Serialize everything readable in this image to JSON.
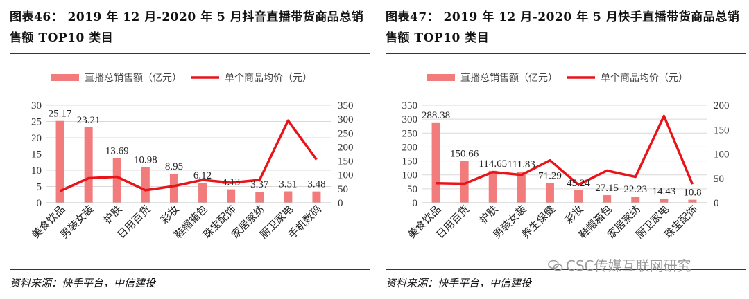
{
  "left": {
    "title_line1": "图表46： 2019 年 12 月-2020 年 5 月抖音直播带货商品总销",
    "title_line2": "售额 TOP10 类目",
    "source": "资料来源：快手平台，中信建投"
  },
  "right": {
    "title_line1": "图表47： 2019 年 12 月-2020 年 5 月快手直播带货商品总销",
    "title_line2": "售额 TOP10 类目",
    "source": "资料来源：快手平台，中信建投"
  },
  "watermark": "CSC传媒互联网研究",
  "colors": {
    "bar": "#f27c7c",
    "line": "#e8141a",
    "grid": "#d9d9d9",
    "rule": "#1f3a5f"
  },
  "chart_data": [
    {
      "type": "bar",
      "categories": [
        "美食饮品",
        "男装女装",
        "护肤",
        "日用百货",
        "彩妆",
        "鞋帽箱包",
        "珠宝配饰",
        "家居家纺",
        "厨卫家电",
        "手机数码"
      ],
      "series": [
        {
          "name": "直播总销售额（亿元）",
          "type": "bar",
          "axis": "left",
          "values": [
            25.17,
            23.21,
            13.69,
            10.98,
            8.95,
            6.12,
            4.13,
            3.37,
            3.51,
            3.48
          ],
          "labels": [
            "25.17",
            "23.21",
            "13.69",
            "10.98",
            "8.95",
            "6.12",
            "4.13",
            "3.37",
            "3.51",
            "3.48"
          ]
        },
        {
          "name": "单个商品均价（元）",
          "type": "line",
          "axis": "right",
          "values": [
            42,
            88,
            93,
            45,
            60,
            82,
            72,
            82,
            295,
            155
          ]
        }
      ],
      "ylim_left": [
        0,
        30
      ],
      "yticks_left": [
        0,
        5,
        10,
        15,
        20,
        25,
        30
      ],
      "ylim_right": [
        0,
        350
      ],
      "yticks_right": [
        0,
        50,
        100,
        150,
        200,
        250,
        300,
        350
      ],
      "legend": "top-center",
      "grid": true
    },
    {
      "type": "bar",
      "categories": [
        "美食饮品",
        "日用百货",
        "护肤",
        "男装女装",
        "养生保健",
        "彩妆",
        "鞋帽箱包",
        "家居家纺",
        "厨卫家电",
        "珠宝配饰"
      ],
      "series": [
        {
          "name": "直播总销售额（亿元）",
          "type": "bar",
          "axis": "left",
          "values": [
            288.38,
            150.66,
            114.65,
            111.83,
            71.29,
            45.24,
            27.15,
            22.23,
            14.43,
            10.8
          ],
          "labels": [
            "288.38",
            "150.66",
            "114.65",
            "111.83",
            "71.29",
            "45.24",
            "27.15",
            "22.23",
            "14.43",
            "10.8"
          ]
        },
        {
          "name": "单个商品均价（元）",
          "type": "line",
          "axis": "right",
          "values": [
            40,
            39,
            63,
            57,
            87,
            37,
            66,
            53,
            178,
            38
          ]
        }
      ],
      "ylim_left": [
        0,
        350
      ],
      "yticks_left": [
        0,
        50,
        100,
        150,
        200,
        250,
        300,
        350
      ],
      "ylim_right": [
        0,
        200
      ],
      "yticks_right": [
        0,
        50,
        100,
        150,
        200
      ],
      "legend": "top-center",
      "grid": true
    }
  ]
}
